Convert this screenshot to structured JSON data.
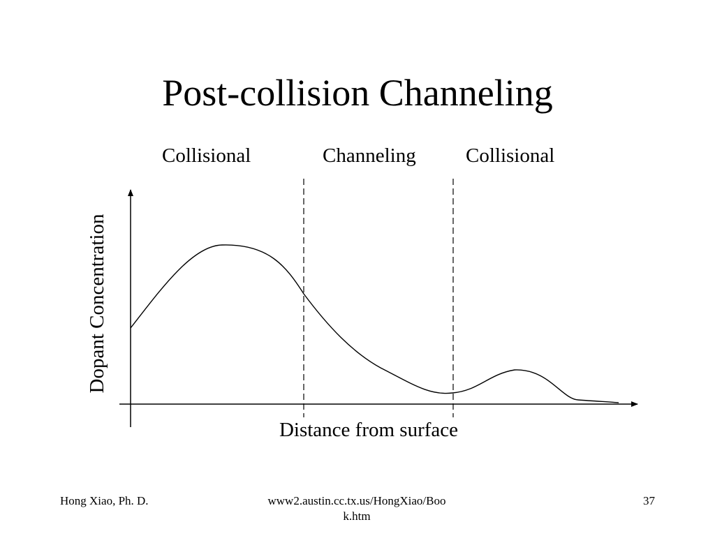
{
  "slide": {
    "title": "Post-collision Channeling"
  },
  "diagram": {
    "regions": [
      "Collisional",
      "Channeling",
      "Collisional"
    ],
    "x_axis_label": "Distance from surface",
    "y_axis_label": "Dopant Concentration",
    "line_color": "#000000"
  },
  "footer": {
    "author": "Hong Xiao, Ph. D.",
    "url": "www2.austin.cc.tx.us/HongXiao/Book.htm",
    "page_number": "37"
  }
}
